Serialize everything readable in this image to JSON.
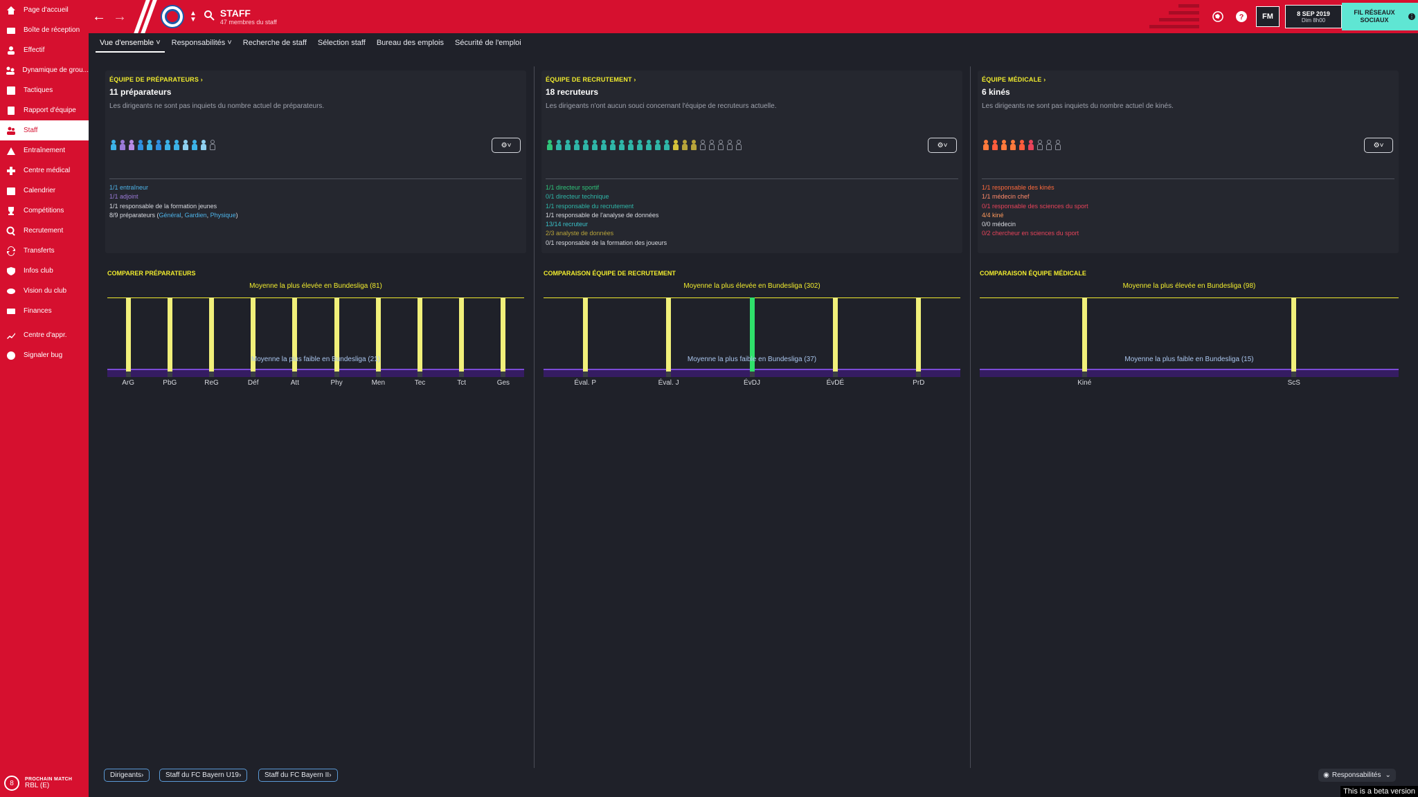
{
  "sidebar": {
    "items": [
      {
        "label": "Page d'accueil",
        "icon": "home-icon"
      },
      {
        "label": "Boîte de réception",
        "icon": "inbox-icon"
      },
      {
        "label": "Effectif",
        "icon": "squad-icon"
      },
      {
        "label": "Dynamique de grou...",
        "icon": "dynamics-icon"
      },
      {
        "label": "Tactiques",
        "icon": "tactics-icon"
      },
      {
        "label": "Rapport d'équipe",
        "icon": "report-icon"
      },
      {
        "label": "Staff",
        "icon": "staff-icon",
        "active": true
      },
      {
        "label": "Entraînement",
        "icon": "training-icon"
      },
      {
        "label": "Centre médical",
        "icon": "medical-icon"
      },
      {
        "label": "Calendrier",
        "icon": "calendar-icon"
      },
      {
        "label": "Compétitions",
        "icon": "trophy-icon"
      },
      {
        "label": "Recrutement",
        "icon": "search-icon"
      },
      {
        "label": "Transferts",
        "icon": "transfer-icon"
      },
      {
        "label": "Infos club",
        "icon": "shield-icon"
      },
      {
        "label": "Vision du club",
        "icon": "vision-icon"
      },
      {
        "label": "Finances",
        "icon": "finance-icon"
      },
      {
        "label": "Centre d'appr.",
        "icon": "learning-icon"
      },
      {
        "label": "Signaler bug",
        "icon": "bug-icon"
      }
    ],
    "next_match": {
      "label": "PROCHAIN MATCH",
      "value": "RBL (E)",
      "badge": "8"
    }
  },
  "header": {
    "title": "STAFF",
    "subtitle": "47 membres du staff",
    "date": "8 SEP 2019",
    "time": "Dim 8h00",
    "fm_label": "FM",
    "social_label": "FIL RÉSEAUX SOCIAUX",
    "accent": "#d6102f"
  },
  "tabs": [
    {
      "label": "Vue d'ensemble",
      "dropdown": true,
      "active": true
    },
    {
      "label": "Responsabilités",
      "dropdown": true
    },
    {
      "label": "Recherche de staff"
    },
    {
      "label": "Sélection staff"
    },
    {
      "label": "Bureau des emplois"
    },
    {
      "label": "Sécurité de l'emploi"
    }
  ],
  "panels": [
    {
      "title": "ÉQUIPE DE PRÉPARATEURS",
      "count": "11 préparateurs",
      "desc": "Les dirigeants ne sont pas inquiets du nombre actuel de préparateurs.",
      "people": [
        "#3cb3e8",
        "#9b7ad8",
        "#b98be6",
        "#2f8fe0",
        "#3cb3e8",
        "#2f8fe0",
        "#3cb3e8",
        "#3cb3e8",
        "#8fd0f0",
        "#3cb3e8",
        "#8fd0f0",
        "empty"
      ],
      "roles": [
        {
          "text": "1/1 entraîneur",
          "color": "#4db3e8"
        },
        {
          "text": "1/1 adjoint",
          "color": "#9b7ad8"
        },
        {
          "text": "1/1 responsable de la formation jeunes",
          "color": "#d8dae0"
        }
      ],
      "roles_last": {
        "prefix": "8/9 préparateurs (",
        "links": [
          "Général",
          "Gardien",
          "Physique"
        ],
        "suffix": ")"
      },
      "comp_title": "COMPARER PRÉPARATEURS",
      "avg_hi": "Moyenne la plus élevée en Bundesliga (81)",
      "avg_lo": "Moyenne la plus faible en Bundesliga (21)"
    },
    {
      "title": "ÉQUIPE DE RECRUTEMENT",
      "count": "18 recruteurs",
      "desc": "Les dirigeants n'ont aucun souci concernant l'équipe de recruteurs actuelle.",
      "people": [
        "#2fc47a",
        "#2fb6a8",
        "#2fb6a8",
        "#2fb6a8",
        "#2fb6a8",
        "#2fb6a8",
        "#2fb6a8",
        "#2fb6a8",
        "#2fb6a8",
        "#2fb6a8",
        "#2fb6a8",
        "#2fb6a8",
        "#2fb6a8",
        "#2fb6a8",
        "#d6c23a",
        "#b8a43a",
        "#b8a43a",
        "empty",
        "empty",
        "empty",
        "empty",
        "empty"
      ],
      "roles": [
        {
          "text": "1/1 directeur sportif",
          "color": "#2fc47a"
        },
        {
          "text": "0/1 directeur technique",
          "color": "#2fb6a8"
        },
        {
          "text": "1/1 responsable du recrutement",
          "color": "#2fb6a8"
        },
        {
          "text": "1/1 responsable de l'analyse de données",
          "color": "#d8dae0"
        },
        {
          "text": "13/14 recruteur",
          "color": "#3ac1c8"
        },
        {
          "text": "2/3 analyste de données",
          "color": "#b8a43a"
        },
        {
          "text": "0/1 responsable de la formation des joueurs",
          "color": "#d8dae0"
        }
      ],
      "comp_title": "COMPARAISON ÉQUIPE DE RECRUTEMENT",
      "avg_hi": "Moyenne la plus élevée en Bundesliga (302)",
      "avg_lo": "Moyenne la plus faible en Bundesliga (37)"
    },
    {
      "title": "ÉQUIPE MÉDICALE",
      "count": "6 kinés",
      "desc": "Les dirigeants ne sont pas inquiets du nombre actuel de kinés.",
      "people": [
        "#ff7a3c",
        "#ff5c3c",
        "#ff7a3c",
        "#ff7a3c",
        "#ff5c3c",
        "#e8435a",
        "empty",
        "empty",
        "empty"
      ],
      "roles": [
        {
          "text": "1/1 responsable des kinés",
          "color": "#ff6a3c"
        },
        {
          "text": "1/1 médecin chef",
          "color": "#ff8a6a"
        },
        {
          "text": "0/1 responsable des sciences du sport",
          "color": "#e8435a"
        },
        {
          "text": "4/4 kiné",
          "color": "#ff9a5c"
        },
        {
          "text": "0/0 médecin",
          "color": "#d8dae0"
        },
        {
          "text": "0/2 chercheur en sciences du sport",
          "color": "#e8435a"
        }
      ],
      "comp_title": "COMPARAISON ÉQUIPE MÉDICALE",
      "avg_hi": "Moyenne la plus élevée en Bundesliga (98)",
      "avg_lo": "Moyenne la plus faible en Bundesliga (15)"
    }
  ],
  "filter_label": "⚙",
  "chart_data": [
    {
      "type": "bar",
      "title": "COMPARER PRÉPARATEURS",
      "categories": [
        "ArG",
        "PbG",
        "ReG",
        "Déf",
        "Att",
        "Phy",
        "Men",
        "Tec",
        "Tct",
        "Ges"
      ],
      "values": [
        81,
        81,
        81,
        81,
        81,
        81,
        81,
        81,
        81,
        81
      ],
      "annotations": [
        "Moyenne la plus élevée en Bundesliga (81)",
        "Moyenne la plus faible en Bundesliga (21)"
      ],
      "reference_lines": {
        "high": 81,
        "low": 21
      },
      "bar_color": "#f1f07a"
    },
    {
      "type": "bar",
      "title": "COMPARAISON ÉQUIPE DE RECRUTEMENT",
      "categories": [
        "Éval. P",
        "Éval. J",
        "ÉvDJ",
        "ÉvDÉ",
        "PrD"
      ],
      "values": [
        302,
        302,
        302,
        302,
        302
      ],
      "annotations": [
        "Moyenne la plus élevée en Bundesliga (302)",
        "Moyenne la plus faible en Bundesliga (37)"
      ],
      "reference_lines": {
        "high": 302,
        "low": 37
      },
      "bar_colors": [
        "#f1f07a",
        "#f1f07a",
        "#2fe06a",
        "#f1f07a",
        "#f1f07a"
      ]
    },
    {
      "type": "bar",
      "title": "COMPARAISON ÉQUIPE MÉDICALE",
      "categories": [
        "Kiné",
        "ScS"
      ],
      "values": [
        98,
        98
      ],
      "annotations": [
        "Moyenne la plus élevée en Bundesliga (98)",
        "Moyenne la plus faible en Bundesliga (15)"
      ],
      "reference_lines": {
        "high": 98,
        "low": 15
      },
      "bar_color": "#f1f07a"
    }
  ],
  "footer": {
    "buttons": [
      "Dirigeants",
      "Staff du FC Bayern U19",
      "Staff du FC Bayern II"
    ],
    "responsibilities": "Responsabilités",
    "beta": "This is a beta version"
  }
}
